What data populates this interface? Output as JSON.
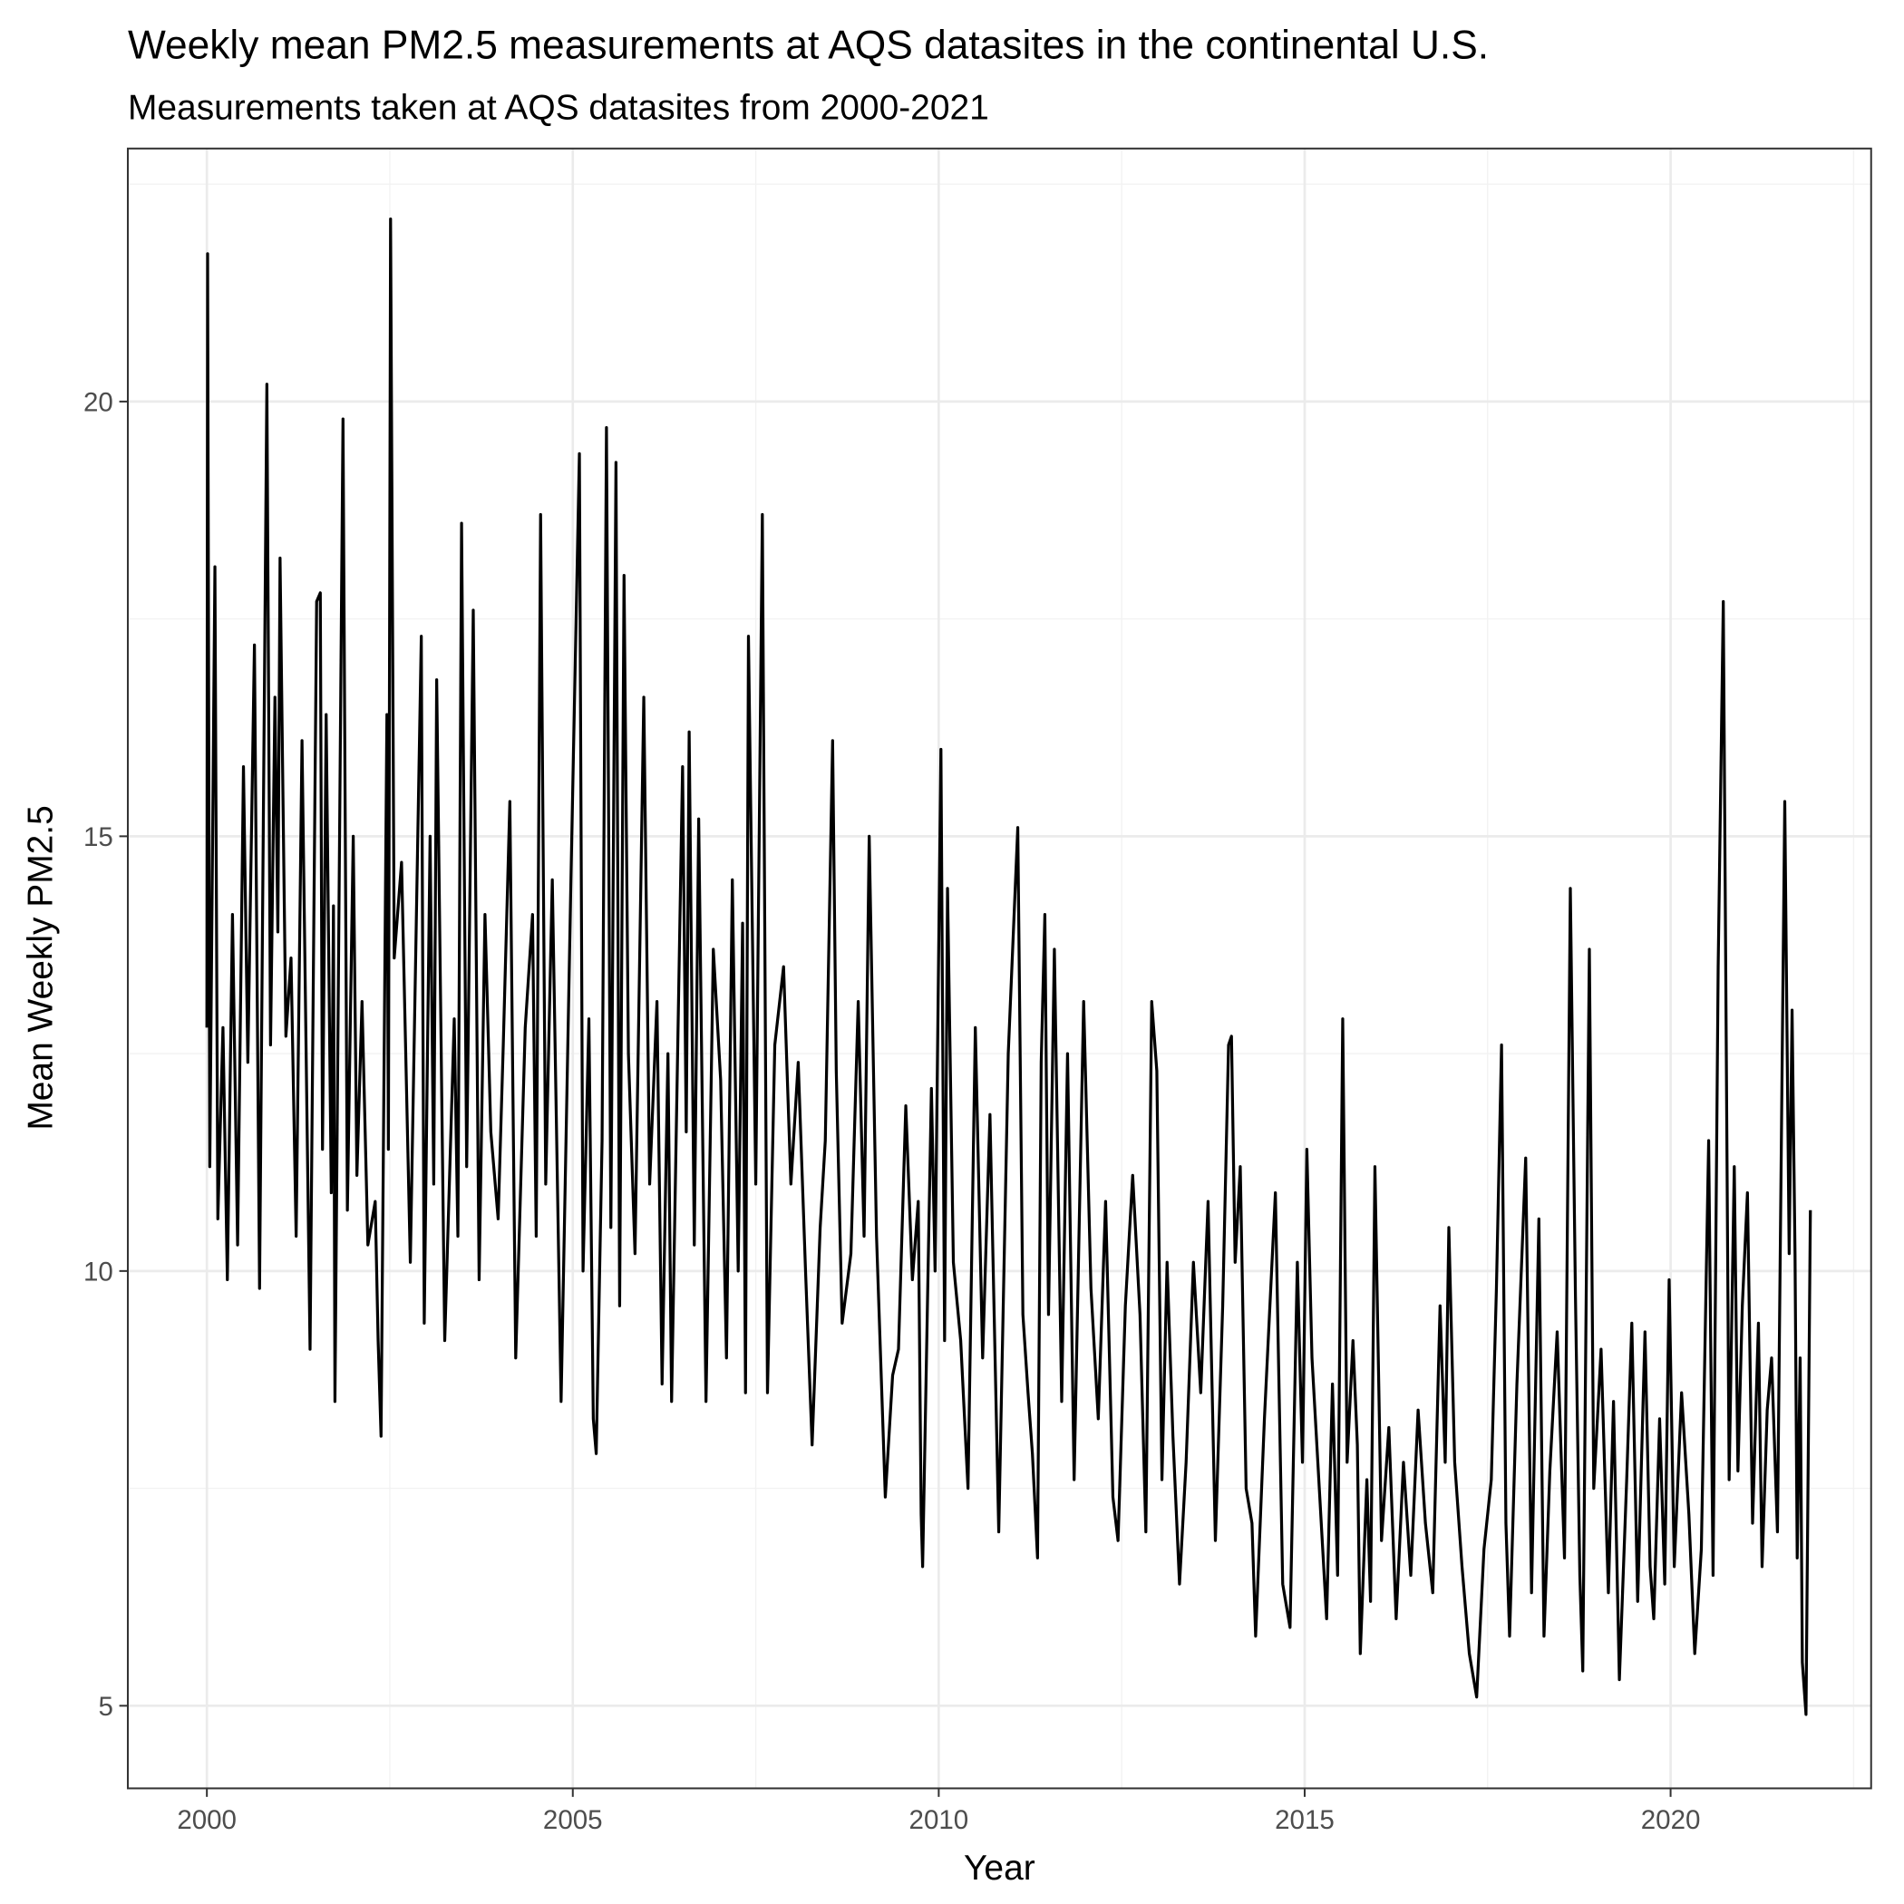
{
  "chart_data": {
    "type": "line",
    "title": "Weekly mean PM2.5 measurements at AQS datasites in the continental U.S.",
    "subtitle": "Measurements taken at AQS datasites from 2000-2021",
    "x_label": "Year",
    "y_label": "Mean Weekly PM2.5",
    "xlim": [
      1998.92,
      2022.74
    ],
    "xticks": [
      2000,
      2005,
      2010,
      2015,
      2020
    ],
    "ylim": [
      4.05,
      22.91
    ],
    "yticks": [
      5,
      10,
      15,
      20
    ],
    "grid": true,
    "minor_grid": true,
    "x": [
      2000.0,
      2000.01,
      2000.04,
      2000.11,
      2000.15,
      2000.22,
      2000.28,
      2000.35,
      2000.42,
      2000.5,
      2000.56,
      2000.65,
      2000.72,
      2000.82,
      2000.87,
      2000.93,
      2000.97,
      2001.0,
      2001.08,
      2001.15,
      2001.22,
      2001.3,
      2001.41,
      2001.5,
      2001.55,
      2001.58,
      2001.63,
      2001.7,
      2001.73,
      2001.75,
      2001.86,
      2001.92,
      2002.0,
      2002.05,
      2002.12,
      2002.2,
      2002.3,
      2002.34,
      2002.38,
      2002.46,
      2002.48,
      2002.51,
      2002.56,
      2002.66,
      2002.78,
      2002.93,
      2002.97,
      2003.05,
      2003.1,
      2003.14,
      2003.25,
      2003.38,
      2003.43,
      2003.48,
      2003.55,
      2003.64,
      2003.72,
      2003.8,
      2003.88,
      2003.98,
      2004.05,
      2004.14,
      2004.22,
      2004.35,
      2004.45,
      2004.5,
      2004.56,
      2004.63,
      2004.72,
      2004.84,
      2004.97,
      2005.09,
      2005.14,
      2005.22,
      2005.28,
      2005.32,
      2005.4,
      2005.46,
      2005.52,
      2005.59,
      2005.64,
      2005.7,
      2005.76,
      2005.85,
      2005.97,
      2006.05,
      2006.15,
      2006.22,
      2006.3,
      2006.35,
      2006.5,
      2006.55,
      2006.59,
      2006.66,
      2006.72,
      2006.82,
      2006.92,
      2007.02,
      2007.1,
      2007.18,
      2007.26,
      2007.32,
      2007.36,
      2007.4,
      2007.5,
      2007.59,
      2007.66,
      2007.76,
      2007.88,
      2007.98,
      2008.08,
      2008.18,
      2008.27,
      2008.38,
      2008.45,
      2008.55,
      2008.6,
      2008.68,
      2008.8,
      2008.9,
      2008.98,
      2009.05,
      2009.15,
      2009.27,
      2009.37,
      2009.45,
      2009.55,
      2009.64,
      2009.72,
      2009.76,
      2009.78,
      2009.9,
      2009.95,
      2010.03,
      2010.08,
      2010.12,
      2010.2,
      2010.3,
      2010.4,
      2010.5,
      2010.6,
      2010.7,
      2010.82,
      2010.95,
      2011.08,
      2011.15,
      2011.22,
      2011.28,
      2011.35,
      2011.4,
      2011.45,
      2011.5,
      2011.58,
      2011.68,
      2011.76,
      2011.85,
      2011.98,
      2012.08,
      2012.18,
      2012.28,
      2012.38,
      2012.45,
      2012.55,
      2012.65,
      2012.75,
      2012.83,
      2012.91,
      2012.98,
      2013.05,
      2013.12,
      2013.2,
      2013.29,
      2013.38,
      2013.48,
      2013.58,
      2013.68,
      2013.78,
      2013.88,
      2013.96,
      2014.0,
      2014.05,
      2014.12,
      2014.2,
      2014.28,
      2014.33,
      2014.45,
      2014.6,
      2014.7,
      2014.8,
      2014.9,
      2014.97,
      2015.03,
      2015.1,
      2015.2,
      2015.3,
      2015.38,
      2015.45,
      2015.52,
      2015.58,
      2015.66,
      2015.72,
      2015.76,
      2015.85,
      2015.9,
      2015.96,
      2016.05,
      2016.15,
      2016.25,
      2016.35,
      2016.45,
      2016.55,
      2016.65,
      2016.75,
      2016.85,
      2016.92,
      2016.97,
      2017.05,
      2017.15,
      2017.25,
      2017.35,
      2017.45,
      2017.55,
      2017.62,
      2017.69,
      2017.75,
      2017.8,
      2017.9,
      2018.02,
      2018.1,
      2018.2,
      2018.27,
      2018.35,
      2018.45,
      2018.55,
      2018.63,
      2018.7,
      2018.76,
      2018.8,
      2018.89,
      2018.95,
      2019.05,
      2019.15,
      2019.22,
      2019.3,
      2019.4,
      2019.47,
      2019.55,
      2019.65,
      2019.72,
      2019.77,
      2019.85,
      2019.92,
      2019.98,
      2020.05,
      2020.15,
      2020.25,
      2020.33,
      2020.42,
      2020.52,
      2020.58,
      2020.65,
      2020.72,
      2020.8,
      2020.87,
      2020.92,
      2020.98,
      2021.05,
      2021.12,
      2021.2,
      2021.25,
      2021.32,
      2021.38,
      2021.46,
      2021.56,
      2021.62,
      2021.66,
      2021.7,
      2021.73,
      2021.77,
      2021.8,
      2021.85,
      2021.91
    ],
    "series": [
      {
        "color": "#000000",
        "values": [
          12.8,
          21.7,
          11.2,
          18.1,
          10.6,
          12.8,
          9.9,
          14.1,
          10.3,
          15.8,
          12.4,
          17.2,
          9.8,
          20.2,
          12.6,
          16.6,
          13.9,
          18.2,
          12.7,
          13.6,
          10.4,
          16.1,
          9.1,
          17.7,
          17.8,
          11.4,
          16.4,
          10.9,
          14.2,
          8.5,
          19.8,
          10.7,
          15.0,
          11.1,
          13.1,
          10.3,
          10.8,
          9.2,
          8.1,
          16.4,
          11.4,
          22.1,
          13.6,
          14.7,
          10.1,
          17.3,
          9.4,
          15.0,
          11.0,
          16.8,
          9.2,
          12.9,
          10.4,
          18.6,
          11.2,
          17.6,
          9.9,
          14.1,
          11.6,
          10.6,
          12.6,
          15.4,
          9.0,
          12.8,
          14.1,
          10.4,
          18.7,
          11.0,
          14.5,
          8.5,
          14.3,
          19.4,
          10.0,
          12.9,
          8.3,
          7.9,
          11.5,
          19.7,
          10.5,
          19.3,
          9.6,
          18.0,
          12.5,
          10.2,
          16.6,
          11.0,
          13.1,
          8.7,
          12.5,
          8.5,
          15.8,
          11.6,
          16.2,
          10.3,
          15.2,
          8.5,
          13.7,
          12.2,
          9.0,
          14.5,
          10.0,
          14.0,
          8.6,
          17.3,
          11.0,
          18.7,
          8.6,
          12.6,
          13.5,
          11.0,
          12.4,
          10.0,
          8.0,
          10.5,
          11.5,
          16.1,
          12.3,
          9.4,
          10.2,
          13.1,
          10.4,
          15.0,
          10.4,
          7.4,
          8.8,
          9.1,
          11.9,
          9.9,
          10.8,
          7.2,
          6.6,
          12.1,
          10.0,
          16.0,
          9.2,
          14.4,
          10.1,
          9.2,
          7.5,
          12.8,
          9.0,
          11.8,
          7.0,
          12.5,
          15.1,
          9.5,
          8.6,
          7.9,
          6.7,
          12.4,
          14.1,
          9.5,
          13.7,
          8.5,
          12.5,
          7.6,
          13.1,
          9.8,
          8.3,
          10.8,
          7.4,
          6.9,
          9.6,
          11.1,
          9.5,
          7.0,
          13.1,
          12.3,
          7.6,
          10.1,
          8.1,
          6.4,
          7.8,
          10.1,
          8.6,
          10.8,
          6.9,
          9.6,
          12.6,
          12.7,
          10.1,
          11.2,
          7.5,
          7.1,
          5.8,
          8.3,
          10.9,
          6.4,
          5.9,
          10.1,
          7.8,
          11.4,
          9.0,
          7.5,
          6.0,
          8.7,
          6.5,
          12.9,
          7.8,
          9.2,
          8.0,
          5.6,
          7.6,
          6.2,
          11.2,
          6.9,
          8.2,
          6.0,
          7.8,
          6.5,
          8.4,
          7.1,
          6.3,
          9.6,
          7.8,
          10.5,
          7.8,
          6.6,
          5.6,
          5.1,
          6.8,
          7.6,
          9.8,
          12.6,
          7.1,
          5.8,
          8.7,
          11.3,
          6.3,
          10.6,
          5.8,
          7.7,
          9.3,
          6.7,
          14.4,
          9.7,
          6.5,
          5.4,
          13.7,
          7.5,
          9.1,
          6.3,
          8.5,
          5.3,
          7.6,
          9.4,
          6.2,
          9.3,
          6.6,
          6.0,
          8.3,
          6.4,
          9.9,
          6.6,
          8.6,
          7.2,
          5.6,
          6.8,
          11.5,
          6.5,
          13.5,
          17.7,
          7.6,
          11.2,
          7.7,
          9.6,
          10.9,
          7.1,
          9.4,
          6.6,
          8.4,
          9.0,
          7.0,
          15.4,
          10.2,
          13.0,
          10.2,
          6.7,
          9.0,
          5.5,
          4.9,
          10.7
        ]
      }
    ]
  }
}
